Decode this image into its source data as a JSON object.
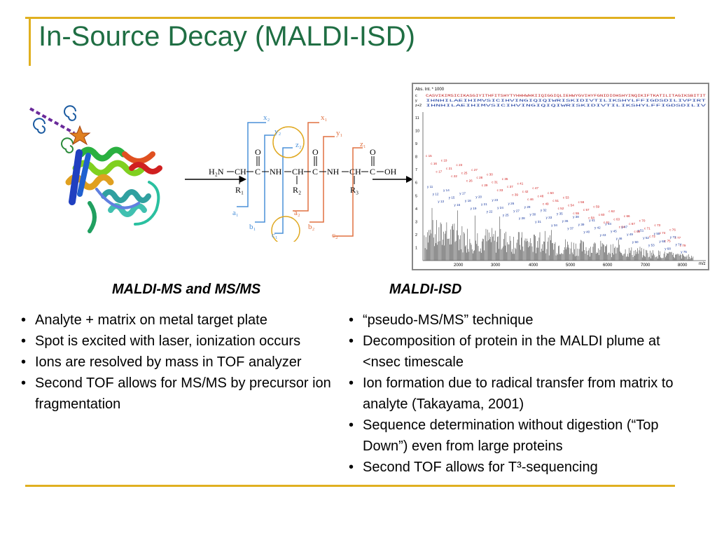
{
  "slide": {
    "title": "In-Source Decay (MALDI-ISD)"
  },
  "scheme": {
    "backbone": {
      "h2n": "H₂N",
      "ch": "CH",
      "c": "C",
      "nh": "NH",
      "oh": "OH",
      "o": "O",
      "r1": "R₁",
      "r2": "R₂",
      "r3": "R₃"
    },
    "ion_labels": {
      "x2": "x₂",
      "y2": "y₂",
      "z2": "z₂",
      "x1": "x₁",
      "y1": "y₁",
      "z1": "z₁",
      "a1": "a₁",
      "b1": "b₁",
      "c1": "c₁",
      "a2": "a₂",
      "b2": "b₂",
      "c2": "c₂"
    }
  },
  "spectrum": {
    "y_axis_title": "Abs. Int. * 1000",
    "x_axis_unit": "m/z",
    "x_ticks": [
      "2000",
      "3000",
      "4000",
      "5000",
      "6000",
      "7000",
      "8000"
    ],
    "y_ticks": [
      "1",
      "2",
      "3",
      "4",
      "5",
      "6",
      "7",
      "8",
      "9",
      "10",
      "11"
    ],
    "sequence_rows": [
      {
        "label": "c",
        "seq": "CASVIKIMSICIKASGIYITHFITSHYTYHHHWHKIIQIGGIQLIEHWYGVIHYFGNIDIOHSHYINQIKIFTKATILITAGIKSBITIT"
      },
      {
        "label": "y",
        "seq": "IHNHILAEIHIMVSICIHVINGIQIQIWRISKIDIVTILIKSHYLFFIGDSDILIVPIRT"
      },
      {
        "label": "z+2",
        "seq": "IHNHILAEIHIMVSICIHVINGIQIQIWRISKIDIVTILIKSHYLFFIGDSDILIV"
      }
    ],
    "c_ions": [
      "c 15",
      "c 16",
      "c 17",
      "c 19",
      "c 21",
      "c 22",
      "c 23",
      "c 25",
      "c 26",
      "c 27",
      "c 28",
      "c 29",
      "c 30",
      "c 31",
      "c 33",
      "c 35",
      "c 37",
      "c 39",
      "c 41",
      "c 42",
      "c 46",
      "c 47",
      "c 48",
      "c 49",
      "c 50",
      "c 51",
      "c 52",
      "c 53",
      "c 54",
      "c 55",
      "c 56",
      "c 57",
      "c 58",
      "c 59",
      "c 60",
      "c 61",
      "c 62",
      "c 63",
      "c 64",
      "c 66",
      "c 67",
      "c 69",
      "c 70",
      "c 71",
      "c 72",
      "c 73",
      "c 74",
      "c 75",
      "c 76",
      "c 77",
      "c 79"
    ],
    "y_ions": [
      "y 11",
      "y 12",
      "y 13",
      "y 14",
      "y 15",
      "y 16",
      "y 17",
      "y 18",
      "y 19",
      "y 20",
      "y 21",
      "y 22",
      "y 23",
      "y 24",
      "y 25",
      "y 26",
      "y 27",
      "y 28",
      "y 29",
      "y 30",
      "y 31",
      "y 32",
      "y 33",
      "y 34",
      "y 35",
      "y 36",
      "y 37",
      "y 38",
      "y 39",
      "y 40",
      "y 41",
      "y 42",
      "y 43",
      "y 44",
      "y 45",
      "y 46",
      "y 47",
      "y 49",
      "y 50",
      "y 51",
      "y 52",
      "y 53",
      "y 55",
      "y 65",
      "y 68",
      "y 73",
      "y 74",
      "y 75"
    ]
  },
  "columns": {
    "left": {
      "heading": "MALDI-MS and MS/MS",
      "bullets": [
        "Analyte + matrix on metal target plate",
        "Spot is excited with laser, ionization occurs",
        "Ions are resolved by mass in TOF analyzer",
        "Second TOF allows for MS/MS by precursor ion fragmentation"
      ]
    },
    "right": {
      "heading": "MALDI-ISD",
      "bullets": [
        "“pseudo-MS/MS” technique",
        "Decomposition of protein in the MALDI plume at <nsec timescale",
        "Ion formation due to radical transfer from matrix to analyte (Takayama, 2001)",
        "Sequence determination without digestion (“Top Down”) even from large proteins",
        "Second TOF allows for T³-sequencing"
      ]
    }
  },
  "colors": {
    "title": "#1f6e43",
    "rule": "#e0b020",
    "n_term_ions": "#4a90d9",
    "c_term_ions": "#e07040",
    "highlight_circle": "#e0a820",
    "c_ion_label": "#d02020",
    "y_ion_label": "#1a3aa0"
  },
  "icons": {
    "protein": "protein-ribbon-icon",
    "laser": "laser-wand-icon",
    "spirals": "ion-spiral-icon"
  }
}
